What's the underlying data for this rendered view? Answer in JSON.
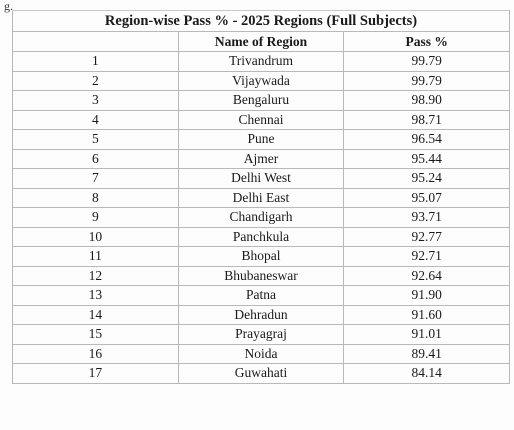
{
  "page_mark": "g.",
  "table": {
    "title": "Region-wise Pass % - 2025 Regions (Full Subjects)",
    "columns": {
      "serial": "",
      "region": "Name of Region",
      "pass": "Pass %"
    },
    "rows": [
      {
        "sno": "1",
        "region": "Trivandrum",
        "pass": "99.79"
      },
      {
        "sno": "2",
        "region": "Vijaywada",
        "pass": "99.79"
      },
      {
        "sno": "3",
        "region": "Bengaluru",
        "pass": "98.90"
      },
      {
        "sno": "4",
        "region": "Chennai",
        "pass": "98.71"
      },
      {
        "sno": "5",
        "region": "Pune",
        "pass": "96.54"
      },
      {
        "sno": "6",
        "region": "Ajmer",
        "pass": "95.44"
      },
      {
        "sno": "7",
        "region": "Delhi West",
        "pass": "95.24"
      },
      {
        "sno": "8",
        "region": "Delhi East",
        "pass": "95.07"
      },
      {
        "sno": "9",
        "region": "Chandigarh",
        "pass": "93.71"
      },
      {
        "sno": "10",
        "region": "Panchkula",
        "pass": "92.77"
      },
      {
        "sno": "11",
        "region": "Bhopal",
        "pass": "92.71"
      },
      {
        "sno": "12",
        "region": "Bhubaneswar",
        "pass": "92.64"
      },
      {
        "sno": "13",
        "region": "Patna",
        "pass": "91.90"
      },
      {
        "sno": "14",
        "region": "Dehradun",
        "pass": "91.60"
      },
      {
        "sno": "15",
        "region": "Prayagraj",
        "pass": "91.01"
      },
      {
        "sno": "16",
        "region": "Noida",
        "pass": "89.41"
      },
      {
        "sno": "17",
        "region": "Guwahati",
        "pass": "84.14"
      }
    ]
  }
}
